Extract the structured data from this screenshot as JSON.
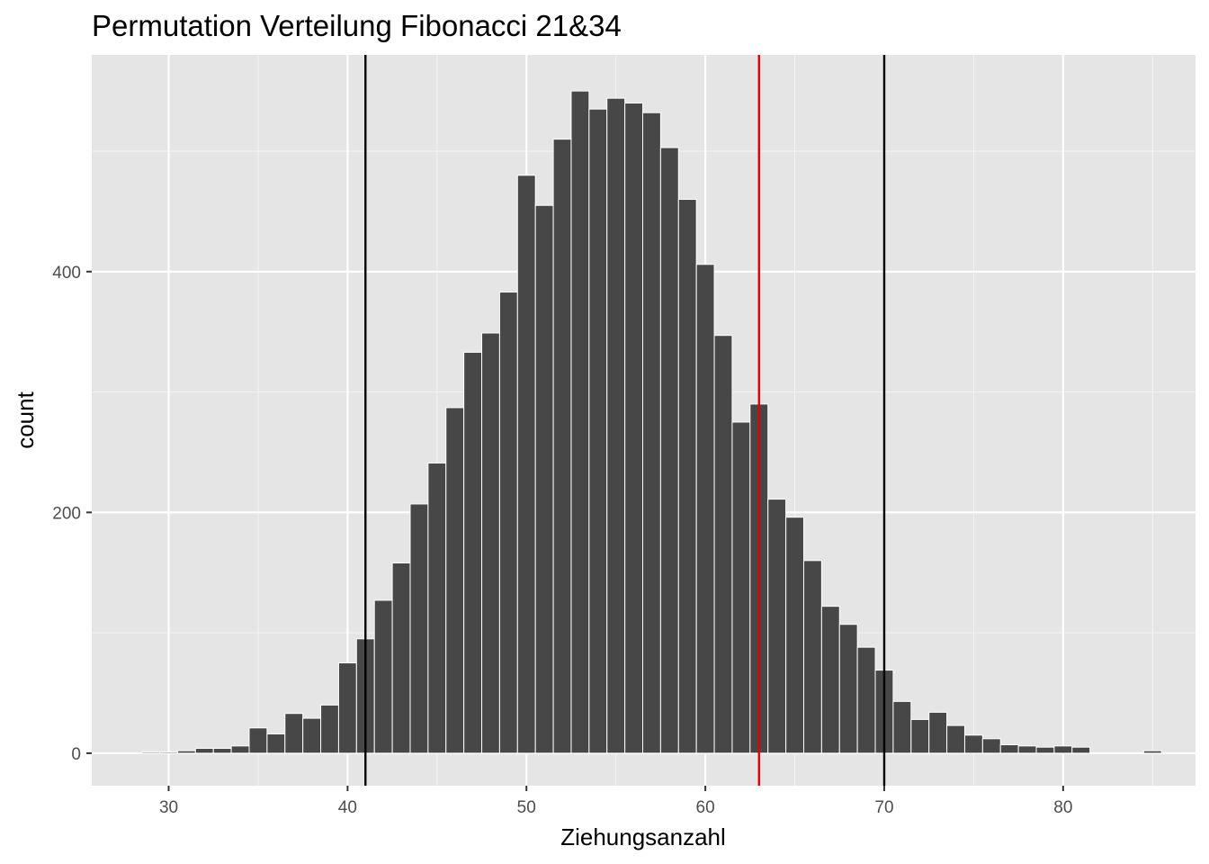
{
  "chart_data": {
    "type": "bar",
    "title": "Permutation Verteilung Fibonacci 21&34",
    "xlabel": "Ziehungsanzahl",
    "ylabel": "count",
    "xlim": [
      25.7,
      87.4
    ],
    "ylim": [
      -27,
      580
    ],
    "x_ticks": [
      30,
      40,
      50,
      60,
      70,
      80
    ],
    "x_tick_labels": [
      "30",
      "40",
      "50",
      "60",
      "70",
      "80"
    ],
    "y_ticks": [
      0,
      200,
      400
    ],
    "y_tick_labels": [
      "0",
      "200",
      "400"
    ],
    "x_minor_ticks": [
      35,
      45,
      55,
      65,
      75,
      85
    ],
    "y_minor_ticks": [
      100,
      300,
      500
    ],
    "grid": true,
    "bar_color": "#474747",
    "bar_outline": "#ffffff",
    "panel_background": "#e5e5e5",
    "bin_width": 1,
    "x": [
      29,
      30,
      31,
      32,
      33,
      34,
      35,
      36,
      37,
      38,
      39,
      40,
      41,
      42,
      43,
      44,
      45,
      46,
      47,
      48,
      49,
      50,
      51,
      52,
      53,
      54,
      55,
      56,
      57,
      58,
      59,
      60,
      61,
      62,
      63,
      64,
      65,
      66,
      67,
      68,
      69,
      70,
      71,
      72,
      73,
      74,
      75,
      76,
      77,
      78,
      79,
      80,
      81,
      82,
      83,
      84,
      85
    ],
    "values": [
      1,
      1,
      2,
      4,
      4,
      6,
      21,
      16,
      33,
      29,
      40,
      75,
      95,
      127,
      158,
      207,
      241,
      287,
      333,
      349,
      383,
      480,
      455,
      510,
      550,
      535,
      544,
      540,
      532,
      503,
      460,
      406,
      347,
      275,
      290,
      211,
      196,
      160,
      122,
      107,
      88,
      69,
      43,
      28,
      34,
      23,
      15,
      12,
      7,
      6,
      5,
      6,
      5,
      0,
      0,
      0,
      2
    ],
    "vertical_lines": [
      {
        "x": 41,
        "color": "#000000"
      },
      {
        "x": 63,
        "color": "#e00000"
      },
      {
        "x": 70,
        "color": "#000000"
      }
    ]
  }
}
